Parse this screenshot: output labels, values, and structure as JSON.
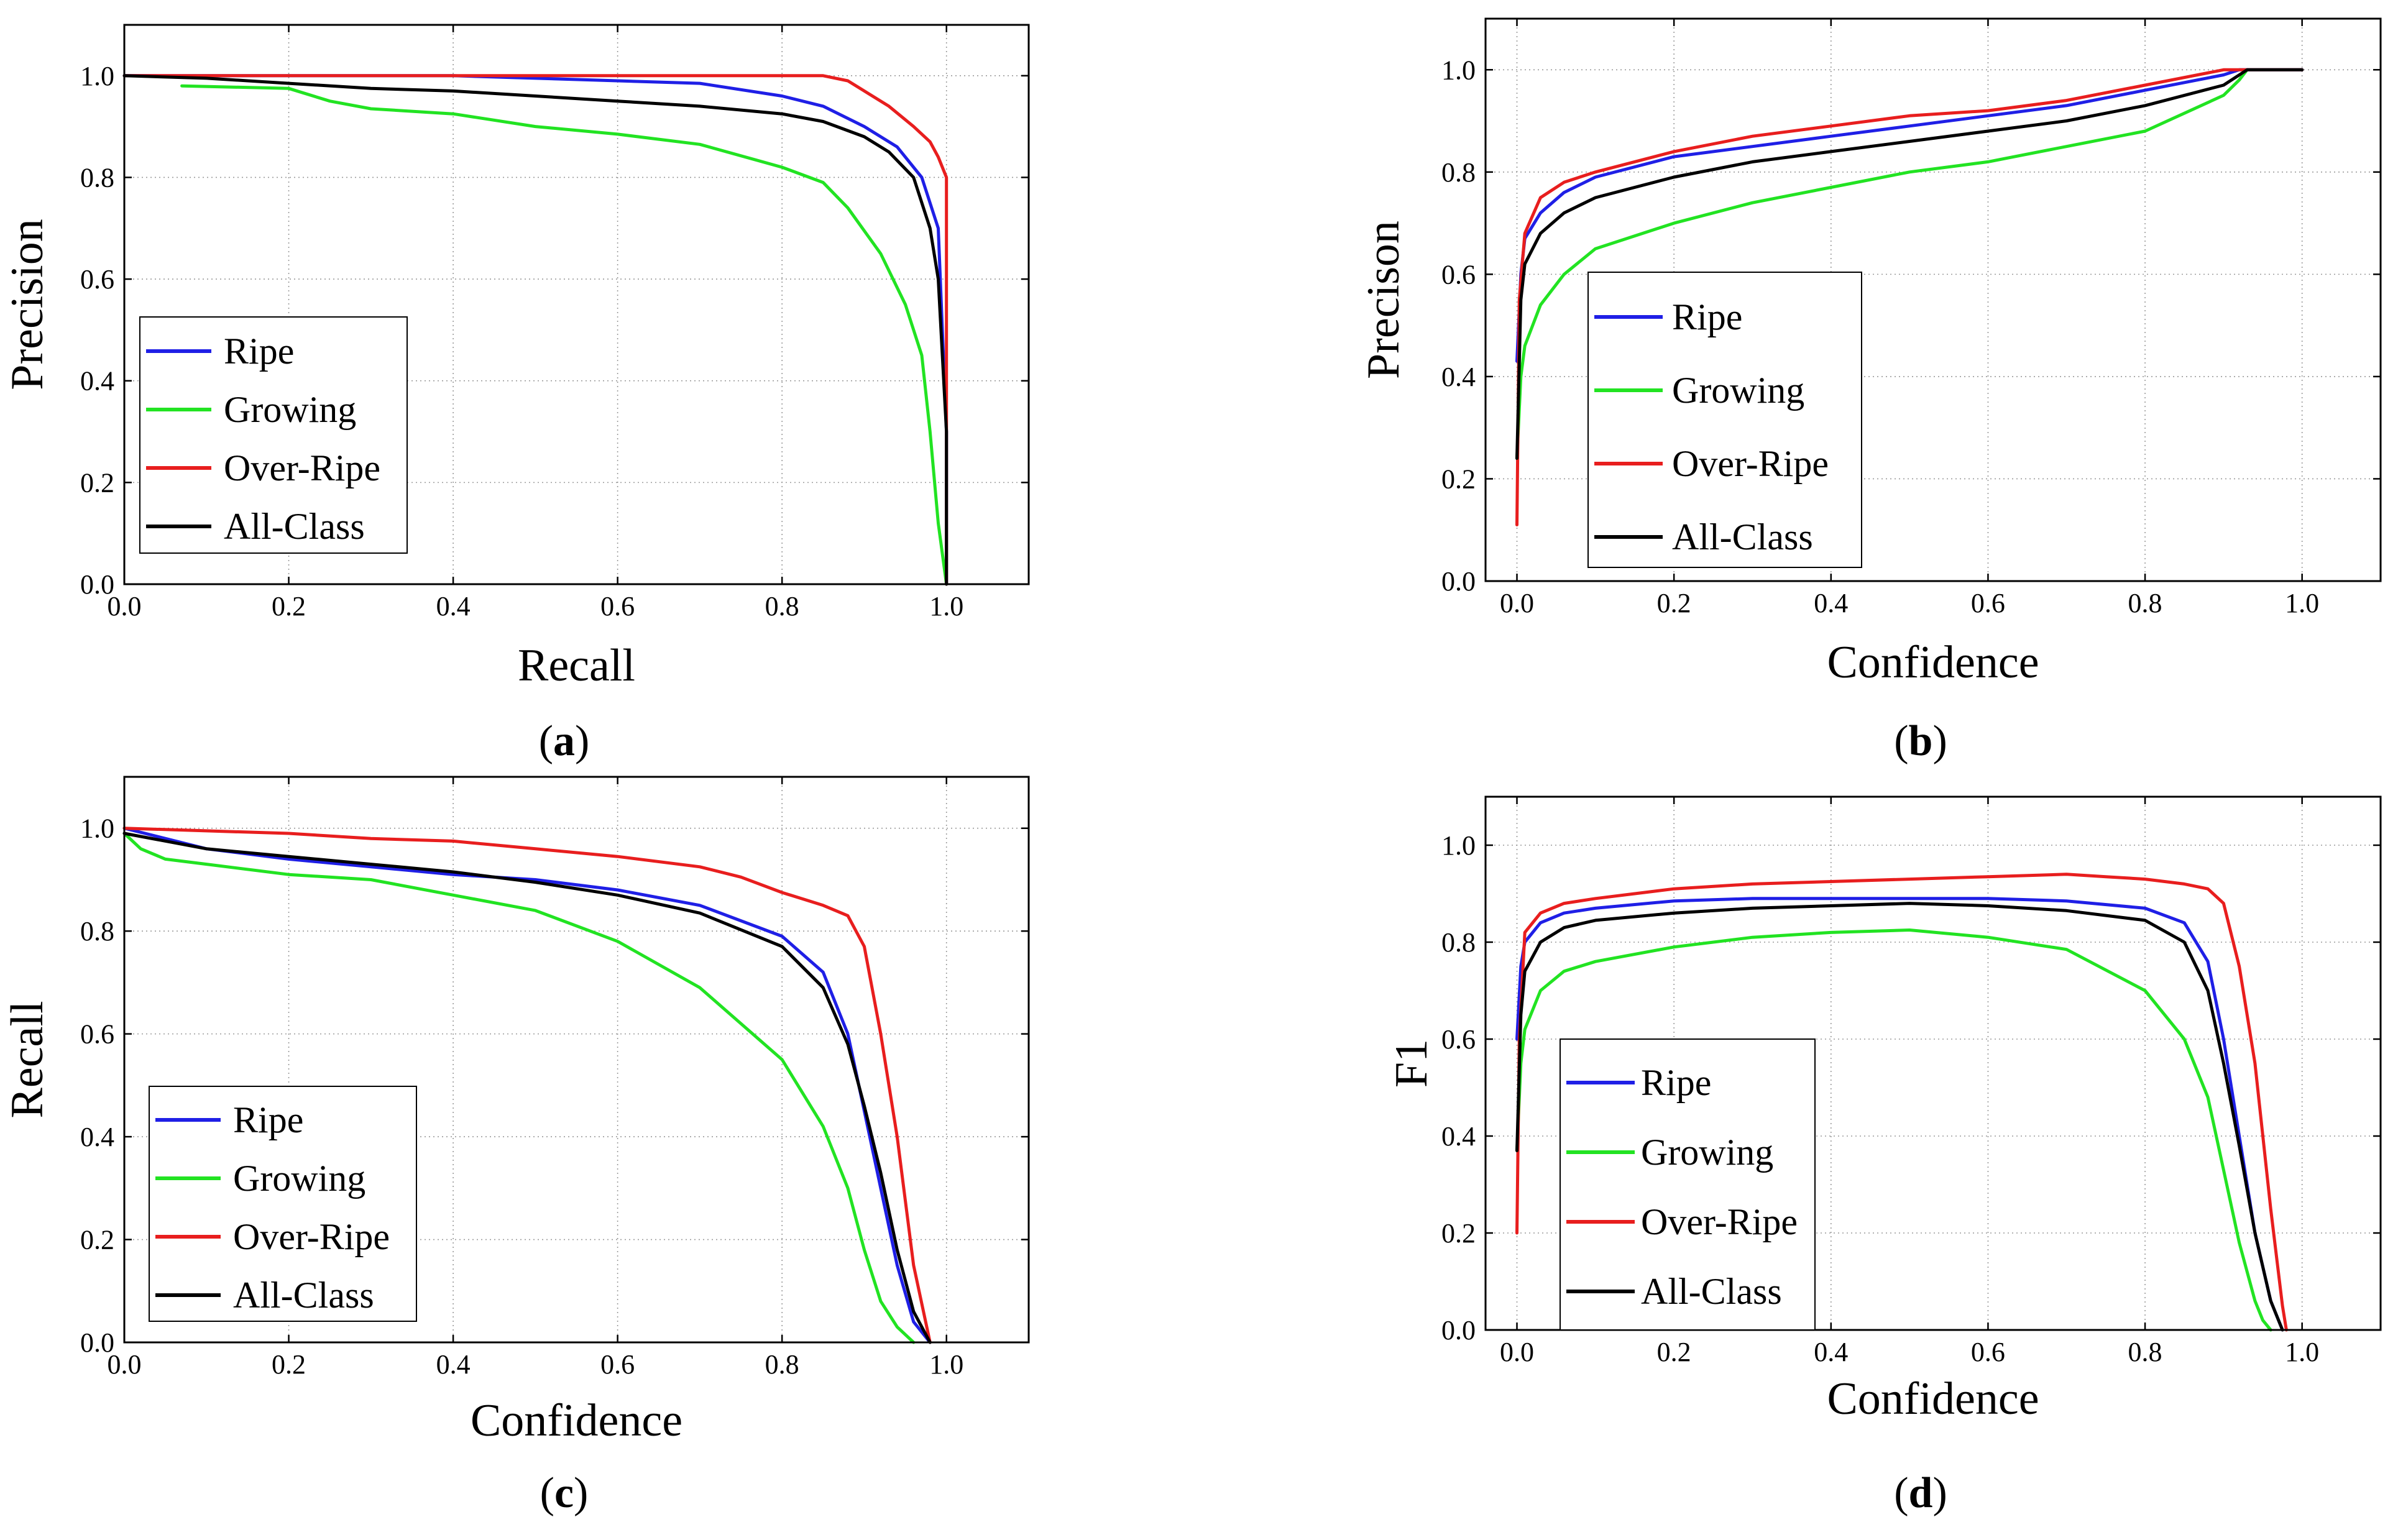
{
  "colors": {
    "Ripe": "#1f1fe6",
    "Growing": "#22e322",
    "Over-Ripe": "#e81e1e",
    "All-Class": "#000000"
  },
  "chart_data": [
    {
      "id": "a",
      "type": "line",
      "caption": "(a)",
      "caption_letter": "a",
      "xlabel": "Recall",
      "ylabel": "Precision",
      "xlim": [
        0,
        1.1
      ],
      "ylim": [
        0,
        1.1
      ],
      "xticks": [
        "0.0",
        "0.2",
        "0.4",
        "0.6",
        "0.8",
        "1.0"
      ],
      "yticks": [
        "0.0",
        "0.2",
        "0.4",
        "0.6",
        "0.8",
        "1.0"
      ],
      "legend": [
        "Ripe",
        "Growing",
        "Over-Ripe",
        "All-Class"
      ],
      "series": [
        {
          "name": "Ripe",
          "x": [
            0.0,
            0.2,
            0.4,
            0.6,
            0.7,
            0.8,
            0.85,
            0.9,
            0.94,
            0.97,
            0.99,
            1.0,
            1.0
          ],
          "y": [
            1.0,
            1.0,
            1.0,
            0.99,
            0.985,
            0.96,
            0.94,
            0.9,
            0.86,
            0.8,
            0.7,
            0.3,
            0.0
          ]
        },
        {
          "name": "Growing",
          "x": [
            0.07,
            0.2,
            0.25,
            0.3,
            0.4,
            0.5,
            0.6,
            0.7,
            0.8,
            0.85,
            0.88,
            0.92,
            0.95,
            0.97,
            0.98,
            0.99,
            1.0
          ],
          "y": [
            0.98,
            0.975,
            0.95,
            0.935,
            0.925,
            0.9,
            0.885,
            0.865,
            0.82,
            0.79,
            0.74,
            0.65,
            0.55,
            0.45,
            0.3,
            0.12,
            0.0
          ]
        },
        {
          "name": "Over-Ripe",
          "x": [
            0.0,
            0.5,
            0.85,
            0.88,
            0.9,
            0.93,
            0.96,
            0.98,
            0.99,
            1.0,
            1.0
          ],
          "y": [
            1.0,
            1.0,
            1.0,
            0.99,
            0.97,
            0.94,
            0.9,
            0.87,
            0.84,
            0.8,
            0.0
          ]
        },
        {
          "name": "All-Class",
          "x": [
            0.0,
            0.1,
            0.2,
            0.3,
            0.4,
            0.5,
            0.6,
            0.7,
            0.8,
            0.85,
            0.9,
            0.93,
            0.96,
            0.98,
            0.99,
            1.0,
            1.0
          ],
          "y": [
            1.0,
            0.995,
            0.985,
            0.975,
            0.97,
            0.96,
            0.95,
            0.94,
            0.925,
            0.91,
            0.88,
            0.85,
            0.8,
            0.7,
            0.6,
            0.3,
            0.0
          ]
        }
      ]
    },
    {
      "id": "b",
      "type": "line",
      "caption": "(b)",
      "caption_letter": "b",
      "xlabel": "Confidence",
      "ylabel": "Precison",
      "xlim": [
        -0.04,
        1.1
      ],
      "ylim": [
        0,
        1.1
      ],
      "xticks": [
        "0.0",
        "0.2",
        "0.4",
        "0.6",
        "0.8",
        "1.0"
      ],
      "yticks": [
        "0.0",
        "0.2",
        "0.4",
        "0.6",
        "0.8",
        "1.0"
      ],
      "legend": [
        "Ripe",
        "Growing",
        "Over-Ripe",
        "All-Class"
      ],
      "series": [
        {
          "name": "Ripe",
          "x": [
            0.0,
            0.005,
            0.01,
            0.03,
            0.06,
            0.1,
            0.2,
            0.3,
            0.4,
            0.5,
            0.6,
            0.7,
            0.8,
            0.9,
            0.92,
            1.0
          ],
          "y": [
            0.43,
            0.6,
            0.67,
            0.72,
            0.76,
            0.79,
            0.83,
            0.85,
            0.87,
            0.89,
            0.91,
            0.93,
            0.96,
            0.99,
            1.0,
            1.0
          ]
        },
        {
          "name": "Growing",
          "x": [
            0.0,
            0.005,
            0.01,
            0.03,
            0.06,
            0.1,
            0.2,
            0.3,
            0.4,
            0.5,
            0.6,
            0.7,
            0.8,
            0.9,
            0.92,
            0.93
          ],
          "y": [
            0.24,
            0.4,
            0.46,
            0.54,
            0.6,
            0.65,
            0.7,
            0.74,
            0.77,
            0.8,
            0.82,
            0.85,
            0.88,
            0.95,
            0.98,
            1.0
          ]
        },
        {
          "name": "Over-Ripe",
          "x": [
            0.0,
            0.003,
            0.01,
            0.03,
            0.06,
            0.1,
            0.2,
            0.3,
            0.4,
            0.5,
            0.6,
            0.7,
            0.8,
            0.9,
            1.0
          ],
          "y": [
            0.11,
            0.55,
            0.68,
            0.75,
            0.78,
            0.8,
            0.84,
            0.87,
            0.89,
            0.91,
            0.92,
            0.94,
            0.97,
            1.0,
            1.0
          ]
        },
        {
          "name": "All-Class",
          "x": [
            0.0,
            0.005,
            0.01,
            0.03,
            0.06,
            0.1,
            0.2,
            0.3,
            0.4,
            0.5,
            0.6,
            0.7,
            0.8,
            0.9,
            0.93,
            1.0
          ],
          "y": [
            0.24,
            0.55,
            0.62,
            0.68,
            0.72,
            0.75,
            0.79,
            0.82,
            0.84,
            0.86,
            0.88,
            0.9,
            0.93,
            0.97,
            1.0,
            1.0
          ]
        }
      ]
    },
    {
      "id": "c",
      "type": "line",
      "caption": "(c)",
      "caption_letter": "c",
      "xlabel": "Confidence",
      "ylabel": "Recall",
      "xlim": [
        0,
        1.1
      ],
      "ylim": [
        0,
        1.1
      ],
      "xticks": [
        "0.0",
        "0.2",
        "0.4",
        "0.6",
        "0.8",
        "1.0"
      ],
      "yticks": [
        "0.0",
        "0.2",
        "0.4",
        "0.6",
        "0.8",
        "1.0"
      ],
      "legend": [
        "Ripe",
        "Growing",
        "Over-Ripe",
        "All-Class"
      ],
      "series": [
        {
          "name": "Ripe",
          "x": [
            0.0,
            0.1,
            0.2,
            0.3,
            0.4,
            0.5,
            0.6,
            0.7,
            0.8,
            0.85,
            0.88,
            0.9,
            0.92,
            0.94,
            0.96,
            0.98
          ],
          "y": [
            1.0,
            0.96,
            0.94,
            0.925,
            0.91,
            0.9,
            0.88,
            0.85,
            0.79,
            0.72,
            0.6,
            0.45,
            0.3,
            0.15,
            0.04,
            0.0
          ]
        },
        {
          "name": "Growing",
          "x": [
            0.0,
            0.02,
            0.05,
            0.1,
            0.2,
            0.3,
            0.4,
            0.5,
            0.6,
            0.7,
            0.8,
            0.85,
            0.88,
            0.9,
            0.92,
            0.94,
            0.96
          ],
          "y": [
            0.99,
            0.96,
            0.94,
            0.93,
            0.91,
            0.9,
            0.87,
            0.84,
            0.78,
            0.69,
            0.55,
            0.42,
            0.3,
            0.18,
            0.08,
            0.03,
            0.0
          ]
        },
        {
          "name": "Over-Ripe",
          "x": [
            0.0,
            0.1,
            0.2,
            0.3,
            0.4,
            0.5,
            0.6,
            0.7,
            0.75,
            0.8,
            0.85,
            0.88,
            0.9,
            0.92,
            0.94,
            0.96,
            0.98
          ],
          "y": [
            1.0,
            0.995,
            0.99,
            0.98,
            0.975,
            0.96,
            0.945,
            0.925,
            0.905,
            0.875,
            0.85,
            0.83,
            0.77,
            0.6,
            0.4,
            0.15,
            0.0
          ]
        },
        {
          "name": "All-Class",
          "x": [
            0.0,
            0.1,
            0.2,
            0.3,
            0.4,
            0.5,
            0.6,
            0.7,
            0.8,
            0.85,
            0.88,
            0.9,
            0.92,
            0.94,
            0.96,
            0.98
          ],
          "y": [
            0.99,
            0.96,
            0.945,
            0.93,
            0.915,
            0.895,
            0.87,
            0.835,
            0.77,
            0.69,
            0.58,
            0.46,
            0.33,
            0.18,
            0.06,
            0.0
          ]
        }
      ]
    },
    {
      "id": "d",
      "type": "line",
      "caption": "(d)",
      "caption_letter": "d",
      "xlabel": "Confidence",
      "ylabel": "F1",
      "xlim": [
        -0.04,
        1.1
      ],
      "ylim": [
        0,
        1.1
      ],
      "xticks": [
        "0.0",
        "0.2",
        "0.4",
        "0.6",
        "0.8",
        "1.0"
      ],
      "yticks": [
        "0.0",
        "0.2",
        "0.4",
        "0.6",
        "0.8",
        "1.0"
      ],
      "legend": [
        "Ripe",
        "Growing",
        "Over-Ripe",
        "All-Class"
      ],
      "series": [
        {
          "name": "Ripe",
          "x": [
            0.0,
            0.005,
            0.01,
            0.03,
            0.06,
            0.1,
            0.2,
            0.3,
            0.4,
            0.5,
            0.6,
            0.7,
            0.8,
            0.85,
            0.88,
            0.9,
            0.92,
            0.94,
            0.96,
            0.97,
            0.975
          ],
          "y": [
            0.6,
            0.75,
            0.8,
            0.84,
            0.86,
            0.87,
            0.885,
            0.89,
            0.89,
            0.89,
            0.89,
            0.885,
            0.87,
            0.84,
            0.76,
            0.6,
            0.4,
            0.2,
            0.06,
            0.02,
            0.0
          ]
        },
        {
          "name": "Growing",
          "x": [
            0.0,
            0.005,
            0.01,
            0.03,
            0.06,
            0.1,
            0.2,
            0.3,
            0.4,
            0.5,
            0.6,
            0.7,
            0.8,
            0.85,
            0.88,
            0.9,
            0.92,
            0.94,
            0.95,
            0.96
          ],
          "y": [
            0.37,
            0.55,
            0.62,
            0.7,
            0.74,
            0.76,
            0.79,
            0.81,
            0.82,
            0.825,
            0.81,
            0.785,
            0.7,
            0.6,
            0.48,
            0.33,
            0.18,
            0.06,
            0.02,
            0.0
          ]
        },
        {
          "name": "Over-Ripe",
          "x": [
            0.0,
            0.003,
            0.01,
            0.03,
            0.06,
            0.1,
            0.2,
            0.3,
            0.4,
            0.5,
            0.6,
            0.7,
            0.75,
            0.8,
            0.85,
            0.88,
            0.9,
            0.92,
            0.94,
            0.96,
            0.975,
            0.98
          ],
          "y": [
            0.2,
            0.6,
            0.82,
            0.86,
            0.88,
            0.89,
            0.91,
            0.92,
            0.925,
            0.93,
            0.935,
            0.94,
            0.935,
            0.93,
            0.92,
            0.91,
            0.88,
            0.75,
            0.55,
            0.25,
            0.05,
            0.0
          ]
        },
        {
          "name": "All-Class",
          "x": [
            0.0,
            0.005,
            0.01,
            0.03,
            0.06,
            0.1,
            0.2,
            0.3,
            0.4,
            0.5,
            0.6,
            0.7,
            0.8,
            0.85,
            0.88,
            0.9,
            0.92,
            0.94,
            0.96,
            0.97,
            0.975
          ],
          "y": [
            0.37,
            0.65,
            0.74,
            0.8,
            0.83,
            0.845,
            0.86,
            0.87,
            0.875,
            0.88,
            0.875,
            0.865,
            0.845,
            0.8,
            0.7,
            0.55,
            0.38,
            0.2,
            0.06,
            0.02,
            0.0
          ]
        }
      ]
    }
  ]
}
